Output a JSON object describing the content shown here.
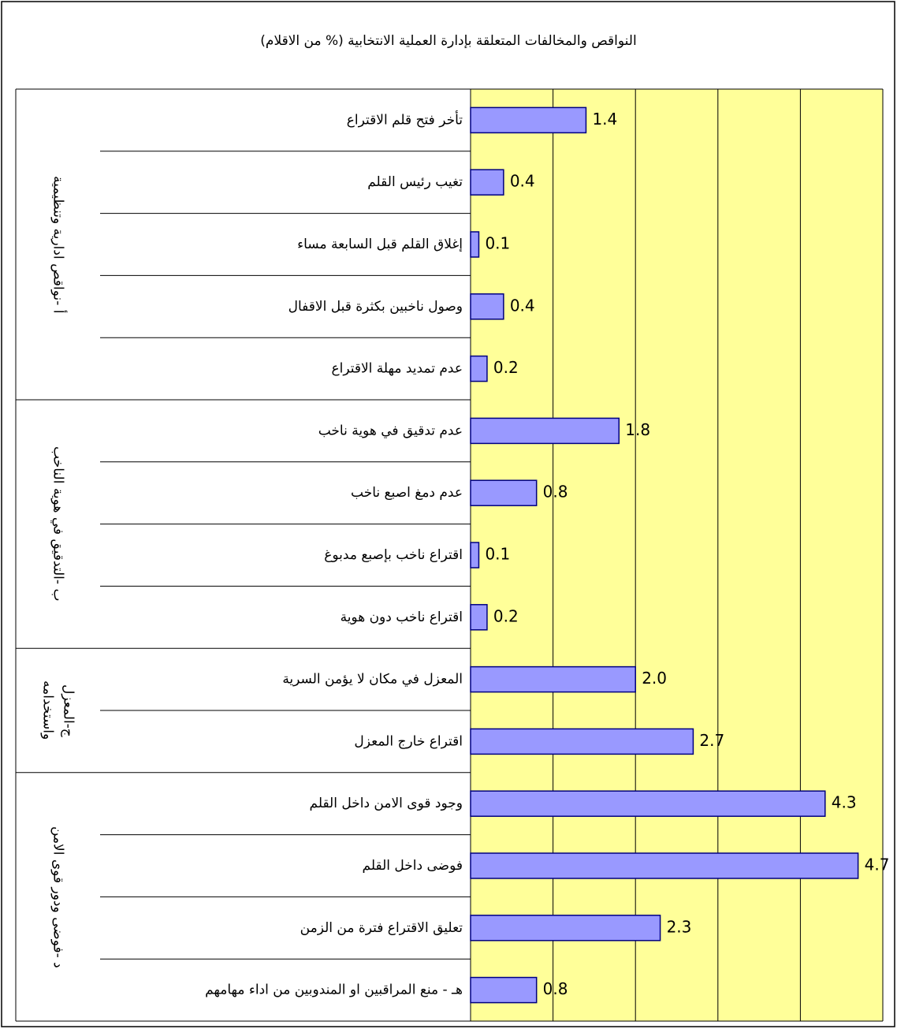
{
  "chart_data": {
    "type": "bar",
    "orientation": "horizontal",
    "title": "النواقص والمخالفات المتعلقة بإدارة العملية الانتخابية (% من الاقلام)",
    "color": "#9999ff",
    "edge_color": "#000080",
    "plot_background": "#ffff99",
    "grid": true,
    "xlim": [
      0,
      5
    ],
    "xticks": [
      0,
      1,
      2,
      3,
      4,
      5
    ],
    "groups": [
      {
        "label": "أ -نواقص ادارية وتنظيمية",
        "categories": [
          "تأخر فتح قلم الاقتراع",
          "تغيب رئيس القلم",
          "إغلاق القلم قبل السابعة مساء",
          "وصول ناخبين بكثرة قبل الاقفال",
          "عدم تمديد مهلة الاقتراع"
        ],
        "values": [
          1.4,
          0.4,
          0.1,
          0.4,
          0.2
        ],
        "value_labels": [
          "1.4",
          "0.4",
          "0.1",
          "0.4",
          "0.2"
        ]
      },
      {
        "label": "ب -التدقيق في هوية الناخب",
        "categories": [
          "عدم تدقيق في هوية ناخب",
          "عدم دمغ اصبع ناخب",
          "اقتراع ناخب بإصبع مدبوغ",
          "اقتراع ناخب دون هوية"
        ],
        "values": [
          1.8,
          0.8,
          0.1,
          0.2
        ],
        "value_labels": [
          "1.8",
          "0.8",
          "0.1",
          "0.2"
        ]
      },
      {
        "label": "ج-المعزل واستخدامه",
        "categories": [
          "المعزل في مكان لا يؤمن السرية",
          "اقتراع خارج المعزل"
        ],
        "values": [
          2.0,
          2.7
        ],
        "value_labels": [
          "2.0",
          "2.7"
        ]
      },
      {
        "label": "د -فوضى ودور قوى الامن",
        "categories": [
          "وجود قوى الامن داخل القلم",
          "فوضى داخل القلم",
          "تعليق الاقتراع فترة من الزمن",
          "هـ - منع المراقبين او المندوبين من اداء مهامهم"
        ],
        "values": [
          4.3,
          4.7,
          2.3,
          0.8
        ],
        "value_labels": [
          "4.3",
          "4.7",
          "2.3",
          "0.8"
        ]
      }
    ]
  }
}
